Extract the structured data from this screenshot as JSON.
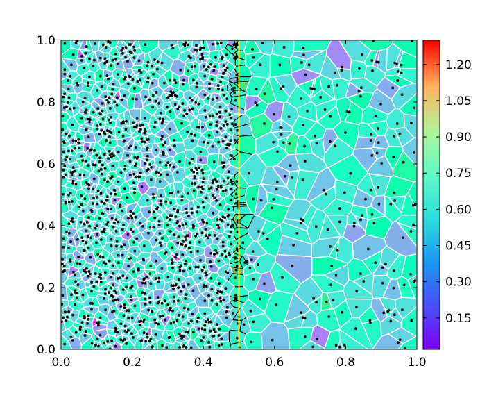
{
  "chart_data": {
    "type": "heatmap",
    "subtype": "voronoi-tessellation",
    "title": "",
    "xlabel": "",
    "ylabel": "",
    "xlim": [
      0.0,
      1.0
    ],
    "ylim": [
      0.0,
      1.0
    ],
    "x_ticks": [
      "0.0",
      "0.2",
      "0.4",
      "0.6",
      "0.8",
      "1.0"
    ],
    "y_ticks": [
      "0.0",
      "0.2",
      "0.4",
      "0.6",
      "0.8",
      "1.0"
    ],
    "colorbar": {
      "colormap": "rainbow",
      "range": [
        0.02,
        1.3
      ],
      "ticks": [
        "0.15",
        "0.30",
        "0.45",
        "0.60",
        "0.75",
        "0.90",
        "1.05",
        "1.20"
      ]
    },
    "interface_line": {
      "x": 0.5,
      "color": "#ffff00"
    },
    "regions": [
      {
        "x_range": [
          0.0,
          0.5
        ],
        "site_count": 1100,
        "value_mean": 0.48,
        "value_spread": 0.18
      },
      {
        "x_range": [
          0.5,
          1.0
        ],
        "site_count": 200,
        "value_mean": 0.5,
        "value_spread": 0.2
      }
    ],
    "grid": false,
    "legend": "colorbar-right"
  }
}
